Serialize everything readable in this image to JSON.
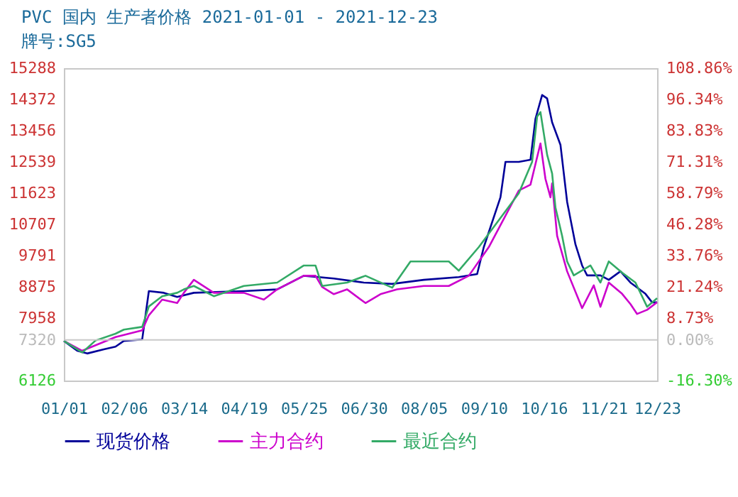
{
  "chart_data": {
    "type": "line",
    "title": "PVC 国内 生产者价格 2021-01-01 - 2021-12-23",
    "subtitle": "牌号:SG5",
    "xlim": [
      "2021-01-01",
      "2021-12-23"
    ],
    "xticks": [
      {
        "value": "2021-01-01",
        "label": "01/01"
      },
      {
        "value": "2021-02-06",
        "label": "02/06"
      },
      {
        "value": "2021-03-14",
        "label": "03/14"
      },
      {
        "value": "2021-04-19",
        "label": "04/19"
      },
      {
        "value": "2021-05-25",
        "label": "05/25"
      },
      {
        "value": "2021-06-30",
        "label": "06/30"
      },
      {
        "value": "2021-08-05",
        "label": "08/05"
      },
      {
        "value": "2021-09-10",
        "label": "09/10"
      },
      {
        "value": "2021-10-16",
        "label": "10/16"
      },
      {
        "value": "2021-11-21",
        "label": "11/21"
      },
      {
        "value": "2021-12-23",
        "label": "12/23"
      }
    ],
    "ylim": [
      6126,
      15288
    ],
    "yticks": [
      6126,
      7320,
      7958,
      8875,
      9791,
      10707,
      11623,
      12539,
      13456,
      14372,
      15288
    ],
    "y2lim": [
      -16.3,
      108.86
    ],
    "y2ticks": [
      {
        "value": -16.3,
        "label": "-16.30%"
      },
      {
        "value": 0,
        "label": "0.00%"
      },
      {
        "value": 8.73,
        "label": "8.73%"
      },
      {
        "value": 21.24,
        "label": "21.24%"
      },
      {
        "value": 33.76,
        "label": "33.76%"
      },
      {
        "value": 46.28,
        "label": "46.28%"
      },
      {
        "value": 58.79,
        "label": "58.79%"
      },
      {
        "value": 71.31,
        "label": "71.31%"
      },
      {
        "value": 83.83,
        "label": "83.83%"
      },
      {
        "value": 96.34,
        "label": "96.34%"
      },
      {
        "value": 108.86,
        "label": "108.86%"
      }
    ],
    "ref_lines": [
      {
        "axis": "y",
        "value": 7320,
        "color": "#c8c8c8"
      }
    ],
    "legend": "bottom",
    "grid": false,
    "series": [
      {
        "name": "现货价格",
        "color": "#000099",
        "x": [
          "2021-01-01",
          "2021-01-09",
          "2021-01-15",
          "2021-01-25",
          "2021-02-01",
          "2021-02-06",
          "2021-02-17",
          "2021-02-21",
          "2021-03-02",
          "2021-03-10",
          "2021-03-20",
          "2021-04-19",
          "2021-05-09",
          "2021-05-25",
          "2021-06-12",
          "2021-06-30",
          "2021-07-17",
          "2021-08-05",
          "2021-08-26",
          "2021-09-06",
          "2021-09-10",
          "2021-09-20",
          "2021-09-23",
          "2021-10-01",
          "2021-10-08",
          "2021-10-11",
          "2021-10-15",
          "2021-10-18",
          "2021-10-21",
          "2021-10-26",
          "2021-10-30",
          "2021-11-04",
          "2021-11-08",
          "2021-11-11",
          "2021-11-19",
          "2021-11-24",
          "2021-12-01",
          "2021-12-07",
          "2021-12-16",
          "2021-12-20",
          "2021-12-23"
        ],
        "values": [
          7290,
          7000,
          6920,
          7040,
          7120,
          7290,
          7330,
          8750,
          8700,
          8580,
          8700,
          8750,
          8800,
          9200,
          9120,
          9000,
          8960,
          9080,
          9160,
          9250,
          10040,
          11500,
          12540,
          12540,
          12600,
          13800,
          14500,
          14400,
          13700,
          13040,
          11370,
          10120,
          9500,
          9210,
          9210,
          9080,
          9330,
          9000,
          8670,
          8420,
          8420
        ]
      },
      {
        "name": "主力合约",
        "color": "#cc00cc",
        "x": [
          "2021-01-01",
          "2021-01-12",
          "2021-02-01",
          "2021-02-17",
          "2021-02-21",
          "2021-03-01",
          "2021-03-10",
          "2021-03-14",
          "2021-03-20",
          "2021-04-01",
          "2021-04-19",
          "2021-05-01",
          "2021-05-09",
          "2021-05-25",
          "2021-06-01",
          "2021-06-05",
          "2021-06-12",
          "2021-06-20",
          "2021-07-01",
          "2021-07-10",
          "2021-07-20",
          "2021-08-05",
          "2021-08-20",
          "2021-09-01",
          "2021-09-13",
          "2021-10-01",
          "2021-10-08",
          "2021-10-14",
          "2021-10-17",
          "2021-10-20",
          "2021-10-21",
          "2021-10-24",
          "2021-10-30",
          "2021-11-08",
          "2021-11-15",
          "2021-11-19",
          "2021-11-24",
          "2021-12-02",
          "2021-12-07",
          "2021-12-11",
          "2021-12-17",
          "2021-12-23"
        ],
        "values": [
          7290,
          7000,
          7400,
          7600,
          8040,
          8500,
          8400,
          8700,
          9080,
          8700,
          8700,
          8500,
          8800,
          9200,
          9200,
          8870,
          8660,
          8800,
          8400,
          8660,
          8800,
          8900,
          8900,
          9200,
          10040,
          11700,
          11870,
          13080,
          12040,
          11500,
          11910,
          10370,
          9330,
          8250,
          8920,
          8290,
          9000,
          8670,
          8370,
          8080,
          8200,
          8420
        ]
      },
      {
        "name": "最近合约",
        "color": "#33aa66",
        "x": [
          "2021-01-01",
          "2021-01-12",
          "2021-01-20",
          "2021-02-01",
          "2021-02-06",
          "2021-02-17",
          "2021-02-21",
          "2021-03-01",
          "2021-03-10",
          "2021-03-14",
          "2021-03-20",
          "2021-04-01",
          "2021-04-19",
          "2021-05-09",
          "2021-05-25",
          "2021-06-01",
          "2021-06-05",
          "2021-06-20",
          "2021-07-01",
          "2021-07-17",
          "2021-07-28",
          "2021-08-20",
          "2021-08-26",
          "2021-09-07",
          "2021-10-01",
          "2021-10-09",
          "2021-10-12",
          "2021-10-14",
          "2021-10-18",
          "2021-10-21",
          "2021-10-23",
          "2021-10-27",
          "2021-10-30",
          "2021-11-03",
          "2021-11-13",
          "2021-11-19",
          "2021-11-24",
          "2021-12-02",
          "2021-12-10",
          "2021-12-17",
          "2021-12-23"
        ],
        "values": [
          7290,
          6950,
          7300,
          7500,
          7620,
          7700,
          8300,
          8600,
          8700,
          8800,
          8900,
          8600,
          8900,
          9000,
          9500,
          9500,
          8900,
          9000,
          9200,
          8850,
          9620,
          9620,
          9350,
          10040,
          11620,
          12540,
          13870,
          14000,
          12750,
          12200,
          11200,
          10370,
          9620,
          9210,
          9500,
          9000,
          9620,
          9290,
          9000,
          8290,
          8540
        ]
      }
    ]
  }
}
